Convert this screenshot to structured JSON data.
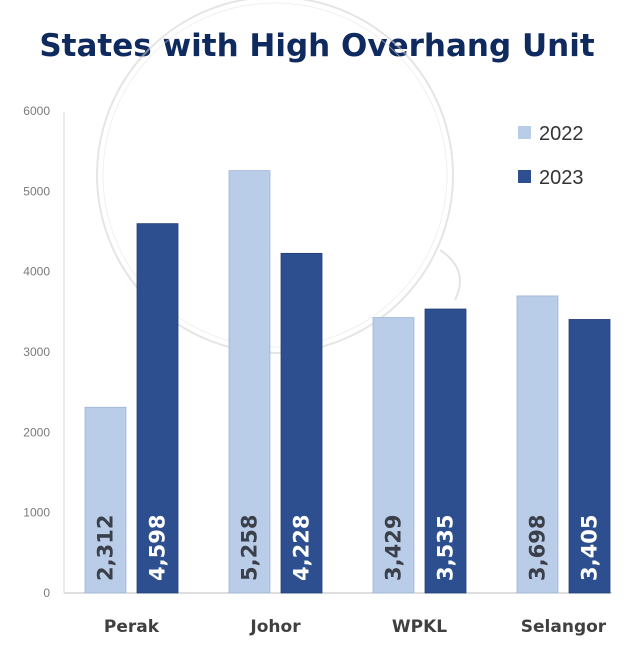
{
  "chart_data": {
    "type": "bar",
    "title": "States with High Overhang Unit",
    "categories": [
      "Perak",
      "Johor",
      "WPKL",
      "Selangor"
    ],
    "series": [
      {
        "name": "2022",
        "color": "#b9cce8",
        "values": [
          2312,
          5258,
          3429,
          3698
        ],
        "labels": [
          "2,312",
          "5,258",
          "3,429",
          "3,698"
        ],
        "label_color": "#3a3f4a"
      },
      {
        "name": "2023",
        "color": "#2e4f8f",
        "values": [
          4598,
          4228,
          3535,
          3405
        ],
        "labels": [
          "4,598",
          "4,228",
          "3,535",
          "3,405"
        ],
        "label_color": "#ffffff"
      }
    ],
    "yticks": [
      "0",
      "1000",
      "2000",
      "3000",
      "4000",
      "5000",
      "6000"
    ],
    "ylim": [
      0,
      6000
    ],
    "xlabel": "",
    "ylabel": "",
    "grid": false,
    "legend": "top-right"
  }
}
